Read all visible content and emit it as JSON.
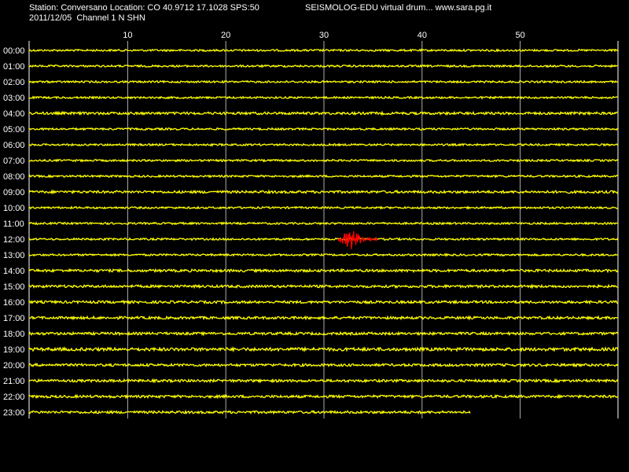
{
  "header": {
    "station": "Station: Conversano Location: CO 40.9712 17.1028 SPS:50",
    "date_channel": "2011/12/05  Channel 1 N SHN",
    "title": "SEISMOLOG-EDU virtual drum... www.sara.pg.it"
  },
  "colors": {
    "background": "#000000",
    "trace": "#ffff00",
    "event": "#ff0000",
    "grid": "#ffffff",
    "text": "#ffffff"
  },
  "chart_data": {
    "type": "line",
    "x_ticks": [
      "10",
      "20",
      "30",
      "40",
      "50"
    ],
    "xlim": [
      0,
      60
    ],
    "grid": true,
    "rows": [
      "00:00",
      "01:00",
      "02:00",
      "03:00",
      "04:00",
      "05:00",
      "06:00",
      "07:00",
      "08:00",
      "09:00",
      "10:00",
      "11:00",
      "12:00",
      "13:00",
      "14:00",
      "15:00",
      "16:00",
      "17:00",
      "18:00",
      "19:00",
      "20:00",
      "21:00",
      "22:00",
      "23:00"
    ],
    "last_row_end_minute": 45,
    "event": {
      "row": "12:00",
      "start_minute": 31.5,
      "peak_minute": 32.8,
      "end_minute": 35.5
    }
  }
}
